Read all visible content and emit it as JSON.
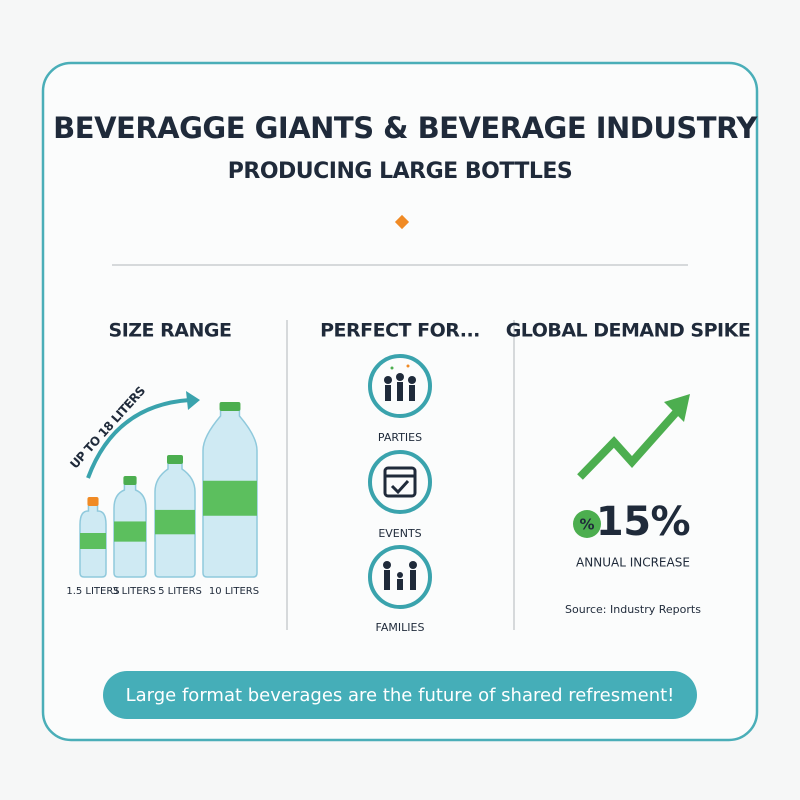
{
  "header": {
    "title": "BEVERAGGE GIANTS & BEVERAGE INDUSTRY",
    "subtitle": "PRODUCING LARGE BOTTLES"
  },
  "size_range": {
    "title": "SIZE RANGE",
    "arc_label": "UP TO 18 LITERS",
    "bottles": [
      "1.5 LITERS",
      "3 LITERS",
      "5 LITERS",
      "10 LITERS"
    ]
  },
  "perfect_for": {
    "title": "PERFECT FOR...",
    "items": [
      "PARTIES",
      "EVENTS",
      "FAMILIES"
    ]
  },
  "demand": {
    "title": "GLOBAL DEMAND SPIKE",
    "badge": "%",
    "stat": "15%",
    "stat_label": "ANNUAL INCREASE",
    "source": "Source: Industry Reports"
  },
  "footer": {
    "banner": "Large format beverages are the future of shared refresment!"
  }
}
